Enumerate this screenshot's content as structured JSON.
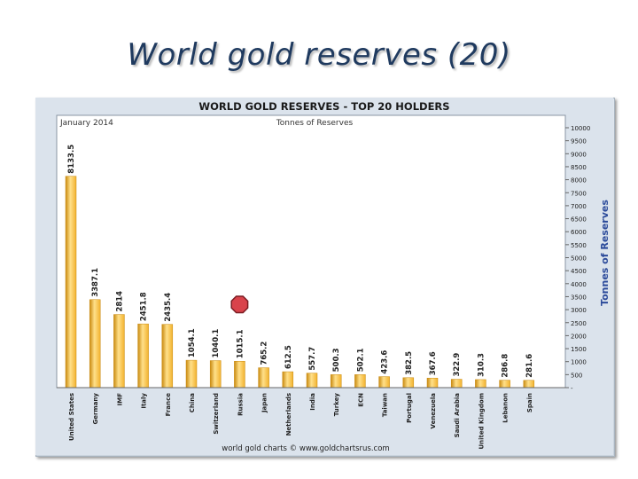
{
  "slide": {
    "title": "World gold reserves (20)"
  },
  "chart_data": {
    "type": "bar",
    "title": "WORLD GOLD RESERVES - TOP 20 HOLDERS",
    "date_label": "January 2014",
    "unit_label": "Tonnes of Reserves",
    "ylabel": "Tonnes of Reserves",
    "footer": "world gold charts © www.goldchartsrus.com",
    "ylim": [
      0,
      10000
    ],
    "yticks": [
      0,
      500,
      1000,
      1500,
      2000,
      2500,
      3000,
      3500,
      4000,
      4500,
      5000,
      5500,
      6000,
      6500,
      7000,
      7500,
      8000,
      8500,
      9000,
      9500,
      10000
    ],
    "ytick_labels": [
      "-",
      "500",
      "1000",
      "1500",
      "2000",
      "2500",
      "3000",
      "3500",
      "4000",
      "4500",
      "5000",
      "5500",
      "6000",
      "6500",
      "7000",
      "7500",
      "8000",
      "8500",
      "9000",
      "9500",
      "10000"
    ],
    "categories": [
      "United States",
      "Germany",
      "IMF",
      "Italy",
      "France",
      "China",
      "Switzerland",
      "Russia",
      "Japan",
      "Netherlands",
      "India",
      "Turkey",
      "ECN",
      "Taiwan",
      "Portugal",
      "Venezuela",
      "Saudi Arabia",
      "United Kingdom",
      "Lebanon",
      "Spain"
    ],
    "values": [
      8133.5,
      3387.1,
      2814,
      2451.8,
      2435.4,
      1054.1,
      1040.1,
      1015.1,
      765.2,
      612.5,
      557.7,
      500.3,
      502.1,
      423.6,
      382.5,
      367.6,
      322.9,
      310.3,
      286.8,
      281.6
    ],
    "value_labels": [
      "8133.5",
      "3387.1",
      "2814",
      "2451.8",
      "2435.4",
      "1054.1",
      "1040.1",
      "1015.1",
      "765.2",
      "612.5",
      "557.7",
      "500.3",
      "502.1",
      "423.6",
      "382.5",
      "367.6",
      "322.9",
      "310.3",
      "286.8",
      "281.6"
    ],
    "highlight_category": "Russia",
    "colors": {
      "bar": "#f2b22e",
      "bar_light": "#ffe08a",
      "bar_dark": "#c98a10",
      "marker": "#d9434b",
      "axis_title": "#2b4a9a"
    }
  }
}
